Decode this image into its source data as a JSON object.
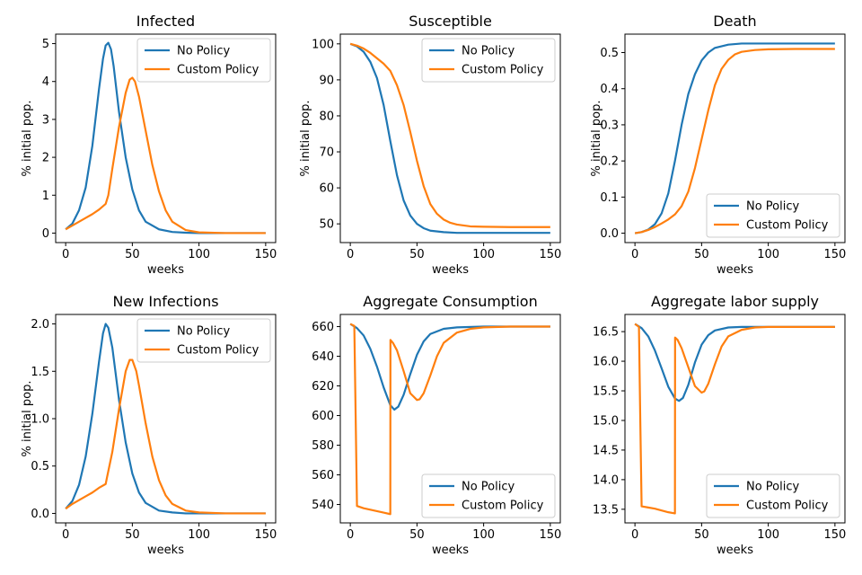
{
  "figure": {
    "width": 960,
    "height": 640
  },
  "colors": {
    "no_policy": "#1f77b4",
    "custom_policy": "#ff7f0e"
  },
  "chart_data": [
    {
      "type": "line",
      "title": "Infected",
      "xlabel": "weeks",
      "ylabel": "% initial pop.",
      "xlim": [
        -7.5,
        157.5
      ],
      "ylim": [
        -0.25,
        5.25
      ],
      "xticks": [
        0,
        50,
        100,
        150
      ],
      "xtick_labels": [
        "0",
        "50",
        "100",
        "150"
      ],
      "yticks": [
        0,
        1,
        2,
        3,
        4,
        5
      ],
      "ytick_labels": [
        "0",
        "1",
        "2",
        "3",
        "4",
        "5"
      ],
      "legend_position": "top-right",
      "series": [
        {
          "name": "No Policy",
          "color": "#1f77b4",
          "x": [
            0,
            5,
            10,
            15,
            20,
            25,
            28,
            30,
            32,
            34,
            36,
            40,
            45,
            50,
            55,
            60,
            70,
            80,
            90,
            100,
            120,
            150
          ],
          "y": [
            0.1,
            0.25,
            0.6,
            1.2,
            2.3,
            3.8,
            4.6,
            4.95,
            5.02,
            4.85,
            4.4,
            3.2,
            2.0,
            1.15,
            0.6,
            0.3,
            0.1,
            0.03,
            0.01,
            0.0,
            0.0,
            0.0
          ]
        },
        {
          "name": "Custom Policy",
          "color": "#ff7f0e",
          "x": [
            0,
            5,
            10,
            15,
            20,
            25,
            30,
            32,
            35,
            40,
            45,
            48,
            50,
            52,
            55,
            60,
            65,
            70,
            75,
            80,
            90,
            100,
            120,
            150
          ],
          "y": [
            0.1,
            0.2,
            0.3,
            0.4,
            0.5,
            0.62,
            0.77,
            1.0,
            1.7,
            2.8,
            3.7,
            4.05,
            4.1,
            4.0,
            3.6,
            2.7,
            1.8,
            1.1,
            0.6,
            0.3,
            0.08,
            0.02,
            0.0,
            0.0
          ]
        }
      ]
    },
    {
      "type": "line",
      "title": "Susceptible",
      "xlabel": "weeks",
      "ylabel": "% initial pop.",
      "xlim": [
        -7.5,
        157.5
      ],
      "ylim": [
        44.8,
        102.7
      ],
      "xticks": [
        0,
        50,
        100,
        150
      ],
      "xtick_labels": [
        "0",
        "50",
        "100",
        "150"
      ],
      "yticks": [
        50,
        60,
        70,
        80,
        90,
        100
      ],
      "ytick_labels": [
        "50",
        "60",
        "70",
        "80",
        "90",
        "100"
      ],
      "legend_position": "top-right",
      "series": [
        {
          "name": "No Policy",
          "color": "#1f77b4",
          "x": [
            0,
            5,
            10,
            15,
            20,
            25,
            30,
            35,
            40,
            45,
            50,
            55,
            60,
            70,
            80,
            90,
            100,
            120,
            150
          ],
          "y": [
            100,
            99.3,
            97.8,
            95,
            90.5,
            83,
            73,
            63.5,
            56.5,
            52.3,
            50,
            48.8,
            48.1,
            47.7,
            47.5,
            47.5,
            47.5,
            47.5,
            47.5
          ]
        },
        {
          "name": "Custom Policy",
          "color": "#ff7f0e",
          "x": [
            0,
            5,
            10,
            15,
            20,
            25,
            30,
            35,
            40,
            45,
            50,
            55,
            60,
            65,
            70,
            75,
            80,
            90,
            100,
            120,
            150
          ],
          "y": [
            100,
            99.5,
            98.7,
            97.5,
            96,
            94.5,
            92.5,
            88.5,
            83,
            75.5,
            67.5,
            60.5,
            55.5,
            52.8,
            51.2,
            50.3,
            49.8,
            49.3,
            49.2,
            49.1,
            49.1
          ]
        }
      ]
    },
    {
      "type": "line",
      "title": "Death",
      "xlabel": "weeks",
      "ylabel": "% initial pop.",
      "xlim": [
        -7.5,
        157.5
      ],
      "ylim": [
        -0.026,
        0.551
      ],
      "xticks": [
        0,
        50,
        100,
        150
      ],
      "xtick_labels": [
        "0",
        "50",
        "100",
        "150"
      ],
      "yticks": [
        0,
        0.1,
        0.2,
        0.3,
        0.4,
        0.5
      ],
      "ytick_labels": [
        "0.0",
        "0.1",
        "0.2",
        "0.3",
        "0.4",
        "0.5"
      ],
      "legend_position": "bottom-right",
      "series": [
        {
          "name": "No Policy",
          "color": "#1f77b4",
          "x": [
            0,
            5,
            10,
            15,
            20,
            25,
            30,
            35,
            40,
            45,
            50,
            55,
            60,
            70,
            80,
            90,
            100,
            120,
            150
          ],
          "y": [
            0,
            0.003,
            0.01,
            0.025,
            0.055,
            0.11,
            0.2,
            0.3,
            0.385,
            0.44,
            0.478,
            0.5,
            0.513,
            0.522,
            0.525,
            0.525,
            0.525,
            0.525,
            0.525
          ]
        },
        {
          "name": "Custom Policy",
          "color": "#ff7f0e",
          "x": [
            0,
            5,
            10,
            15,
            20,
            25,
            30,
            35,
            40,
            45,
            50,
            55,
            60,
            65,
            70,
            75,
            80,
            90,
            100,
            120,
            150
          ],
          "y": [
            0,
            0.003,
            0.009,
            0.017,
            0.027,
            0.038,
            0.052,
            0.075,
            0.115,
            0.18,
            0.26,
            0.34,
            0.41,
            0.455,
            0.48,
            0.495,
            0.502,
            0.507,
            0.509,
            0.51,
            0.51
          ]
        }
      ]
    },
    {
      "type": "line",
      "title": "New Infections",
      "xlabel": "weeks",
      "ylabel": "% initial pop.",
      "xlim": [
        -7.5,
        157.5
      ],
      "ylim": [
        -0.1,
        2.1
      ],
      "xticks": [
        0,
        50,
        100,
        150
      ],
      "xtick_labels": [
        "0",
        "50",
        "100",
        "150"
      ],
      "yticks": [
        0,
        0.5,
        1,
        1.5,
        2
      ],
      "ytick_labels": [
        "0.0",
        "0.5",
        "1.0",
        "1.5",
        "2.0"
      ],
      "legend_position": "top-right",
      "series": [
        {
          "name": "No Policy",
          "color": "#1f77b4",
          "x": [
            0,
            5,
            10,
            15,
            20,
            25,
            28,
            30,
            32,
            35,
            40,
            45,
            50,
            55,
            60,
            70,
            80,
            90,
            100,
            120,
            150
          ],
          "y": [
            0.05,
            0.13,
            0.3,
            0.6,
            1.05,
            1.6,
            1.9,
            2.0,
            1.96,
            1.75,
            1.2,
            0.75,
            0.42,
            0.22,
            0.11,
            0.03,
            0.01,
            0.0,
            0.0,
            0.0,
            0.0
          ]
        },
        {
          "name": "Custom Policy",
          "color": "#ff7f0e",
          "x": [
            0,
            5,
            10,
            15,
            20,
            25,
            30,
            31,
            35,
            40,
            45,
            48,
            50,
            53,
            55,
            60,
            65,
            70,
            75,
            80,
            90,
            100,
            120,
            150
          ],
          "y": [
            0.05,
            0.1,
            0.14,
            0.18,
            0.22,
            0.27,
            0.31,
            0.38,
            0.65,
            1.1,
            1.5,
            1.62,
            1.62,
            1.5,
            1.35,
            0.95,
            0.6,
            0.35,
            0.19,
            0.1,
            0.03,
            0.01,
            0.0,
            0.0
          ]
        }
      ]
    },
    {
      "type": "line",
      "title": "Aggregate Consumption",
      "xlabel": "weeks",
      "ylabel": "",
      "xlim": [
        -7.5,
        157.5
      ],
      "ylim": [
        527.6,
        668.2
      ],
      "xticks": [
        0,
        50,
        100,
        150
      ],
      "xtick_labels": [
        "0",
        "50",
        "100",
        "150"
      ],
      "yticks": [
        540,
        560,
        580,
        600,
        620,
        640,
        660
      ],
      "ytick_labels": [
        "540",
        "560",
        "580",
        "600",
        "620",
        "640",
        "660"
      ],
      "legend_position": "bottom-right",
      "series": [
        {
          "name": "No Policy",
          "color": "#1f77b4",
          "x": [
            0,
            5,
            10,
            15,
            20,
            25,
            30,
            33,
            36,
            40,
            45,
            50,
            55,
            60,
            70,
            80,
            100,
            120,
            150
          ],
          "y": [
            661.8,
            659,
            654,
            645,
            633,
            619,
            607,
            604,
            606,
            614,
            628,
            641,
            650,
            655,
            658.5,
            659.5,
            660,
            660,
            660
          ]
        },
        {
          "name": "Custom Policy",
          "color": "#ff7f0e",
          "x": [
            0,
            3,
            4,
            5,
            10,
            15,
            20,
            25,
            30,
            30.1,
            32,
            35,
            40,
            45,
            50,
            52,
            55,
            60,
            65,
            70,
            80,
            90,
            100,
            120,
            150
          ],
          "y": [
            661.8,
            660.5,
            600,
            539,
            537.5,
            536.5,
            535.5,
            534.5,
            533.5,
            651,
            649,
            644,
            630,
            615,
            610.5,
            611,
            615,
            627,
            640,
            649,
            656,
            658.5,
            659.5,
            660,
            660
          ]
        }
      ]
    },
    {
      "type": "line",
      "title": "Aggregate labor supply",
      "xlabel": "weeks",
      "ylabel": "",
      "xlim": [
        -7.5,
        157.5
      ],
      "ylim": [
        13.27,
        16.79
      ],
      "xticks": [
        0,
        50,
        100,
        150
      ],
      "xtick_labels": [
        "0",
        "50",
        "100",
        "150"
      ],
      "yticks": [
        13.5,
        14,
        14.5,
        15,
        15.5,
        16,
        16.5
      ],
      "ytick_labels": [
        "13.5",
        "14.0",
        "14.5",
        "15.0",
        "15.5",
        "16.0",
        "16.5"
      ],
      "legend_position": "bottom-right",
      "series": [
        {
          "name": "No Policy",
          "color": "#1f77b4",
          "x": [
            0,
            5,
            10,
            15,
            20,
            25,
            30,
            33,
            36,
            40,
            45,
            50,
            55,
            60,
            70,
            80,
            100,
            120,
            150
          ],
          "y": [
            16.63,
            16.56,
            16.42,
            16.18,
            15.88,
            15.57,
            15.37,
            15.33,
            15.38,
            15.6,
            15.98,
            16.28,
            16.44,
            16.52,
            16.57,
            16.58,
            16.58,
            16.58,
            16.58
          ]
        },
        {
          "name": "Custom Policy",
          "color": "#ff7f0e",
          "x": [
            0,
            3,
            4,
            5,
            10,
            15,
            20,
            25,
            30,
            30.1,
            32,
            35,
            40,
            45,
            50,
            52,
            55,
            60,
            65,
            70,
            80,
            90,
            100,
            120,
            150
          ],
          "y": [
            16.63,
            16.58,
            15,
            13.55,
            13.53,
            13.51,
            13.48,
            13.45,
            13.43,
            16.4,
            16.36,
            16.22,
            15.9,
            15.58,
            15.47,
            15.49,
            15.62,
            15.95,
            16.25,
            16.42,
            16.53,
            16.57,
            16.58,
            16.58,
            16.58
          ]
        }
      ]
    }
  ]
}
